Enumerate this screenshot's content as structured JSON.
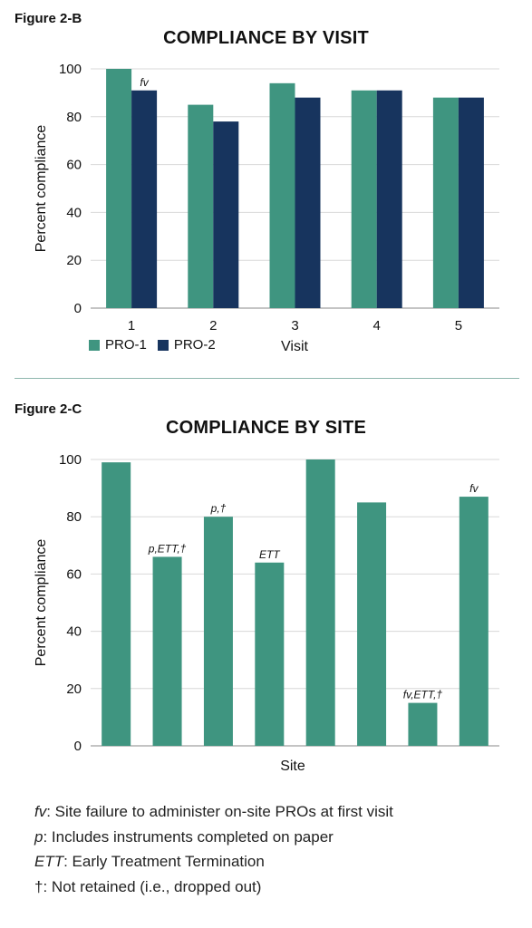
{
  "colors": {
    "pro1": "#3f9580",
    "pro2": "#17345e",
    "grid": "#d8d8d8",
    "axis": "#888888"
  },
  "figure_b": {
    "label": "Figure 2-B",
    "legend": [
      {
        "name": "PRO-1",
        "color": "#3f9580"
      },
      {
        "name": "PRO-2",
        "color": "#17345e"
      }
    ]
  },
  "figure_c": {
    "label": "Figure 2-C"
  },
  "chart_data": [
    {
      "type": "bar",
      "title": "COMPLIANCE BY VISIT",
      "xlabel": "Visit",
      "ylabel": "Percent compliance",
      "ylim": [
        0,
        100
      ],
      "yticks": [
        0,
        20,
        40,
        60,
        80,
        100
      ],
      "grid": true,
      "categories": [
        "1",
        "2",
        "3",
        "4",
        "5"
      ],
      "series": [
        {
          "name": "PRO-1",
          "values": [
            100,
            85,
            94,
            91,
            88
          ]
        },
        {
          "name": "PRO-2",
          "values": [
            91,
            78,
            88,
            91,
            88
          ]
        }
      ],
      "annotations": [
        {
          "category": "1",
          "series": "PRO-2",
          "text": "fv"
        }
      ]
    },
    {
      "type": "bar",
      "title": "COMPLIANCE BY SITE",
      "xlabel": "Site",
      "ylabel": "Percent compliance",
      "ylim": [
        0,
        100
      ],
      "yticks": [
        0,
        20,
        40,
        60,
        80,
        100
      ],
      "grid": true,
      "values": [
        99,
        66,
        80,
        64,
        100,
        85,
        15,
        87
      ],
      "bar_labels": [
        "",
        "p,ETT,†",
        "p,†",
        "ETT",
        "",
        "",
        "fv,ETT,†",
        "fv"
      ]
    }
  ],
  "footnotes": [
    {
      "symbol": "fv",
      "text": ": Site failure to administer on-site PROs at first visit"
    },
    {
      "symbol": "p",
      "text": ": Includes instruments completed on paper"
    },
    {
      "symbol": "ETT",
      "text": ": Early Treatment Termination"
    },
    {
      "symbol": "†",
      "text": ": Not retained (i.e., dropped out)"
    }
  ]
}
